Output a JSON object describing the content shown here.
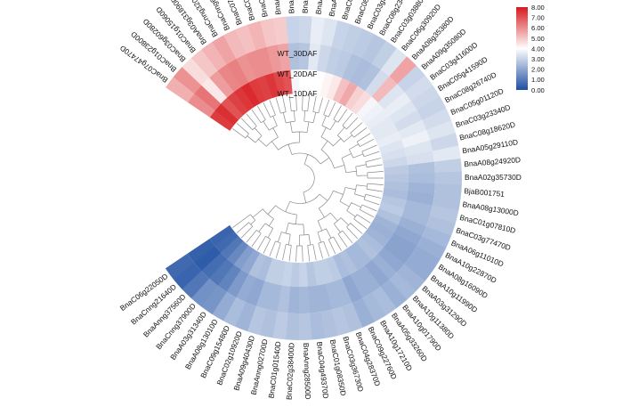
{
  "chart_data": {
    "type": "heatmap",
    "layout": "circular",
    "title": "",
    "rings": [
      "WT_30DAF",
      "WT_20DAF",
      "WT_10DAF"
    ],
    "genes": [
      "BnaC07g47470D",
      "BnaC01g23800D",
      "BnaC03g60280D",
      "BnaC01g15060D",
      "BnaA03g31890D",
      "BnaCnng32000D",
      "BnaCnng66500D",
      "BnaC07g14870D",
      "BnaC08g15350D",
      "BnaC03g75340D",
      "BnaA06g38220D",
      "BnaA04g00700D",
      "BnaC09g47410D",
      "BnaA08g27540D",
      "BnaA01g01020D",
      "BnaC05g42360D",
      "BnaC08g46210D",
      "BnaC03g35630D",
      "BnaC08g23490D",
      "BnaC03g03880D",
      "BnaC06g30920D",
      "BnaA08g35380D",
      "BnaA09g35080D",
      "BnaC03g41600D",
      "BnaC05g41590D",
      "BnaC08g26740D",
      "BnaC05g01120D",
      "BnaC03g23340D",
      "BnaC08g18620D",
      "BnaA05g29110D",
      "BnaA08g24920D",
      "BnaA02g35730D",
      "BjaB001751",
      "BnaA08g13000D",
      "BnaC01g07810D",
      "BnaC03g77470D",
      "BnaA06g11010D",
      "BnaA10g22870D",
      "BnaA08g16090D",
      "BnaA10g11990D",
      "BnaA03g31290D",
      "BnaA10g11380D",
      "BnaA10g01790D",
      "BnaA05g33260D",
      "BnaA10g17210D",
      "BnaC09g22760D",
      "BnaC04g28370D",
      "BnaC03g36730D",
      "BnaC01g08350D",
      "BnaC04g49370D",
      "BnaAnng28500D",
      "BnaC02g38400D",
      "BnaC01g01540D",
      "BnaAnng02700D",
      "BnaA09g40430D",
      "BnaC02g10920D",
      "BnaC09g15480D",
      "BnaA08g13010D",
      "BnaA03g31340D",
      "BnaCnng37900D",
      "BnaAnng37560D",
      "BnaCnng21640D",
      "BnaC06g22050D"
    ],
    "values_WT_30DAF": [
      5.4,
      5.9,
      4.6,
      5.0,
      5.3,
      5.6,
      5.2,
      5.1,
      5.3,
      5.0,
      4.9,
      3.0,
      3.1,
      3.6,
      3.4,
      3.0,
      2.9,
      2.8,
      2.7,
      2.9,
      3.4,
      5.6,
      3.0,
      3.2,
      3.1,
      3.0,
      3.2,
      3.4,
      3.1,
      3.5,
      2.9,
      2.7,
      2.6,
      2.6,
      2.7,
      2.6,
      2.4,
      2.2,
      2.1,
      2.1,
      2.3,
      2.4,
      2.2,
      2.5,
      2.4,
      2.2,
      2.6,
      2.7,
      2.6,
      2.5,
      2.7,
      2.6,
      2.8,
      2.6,
      2.7,
      2.3,
      2.5,
      2.1,
      1.6,
      1.5,
      0.9,
      0.5,
      0.6
    ],
    "values_WT_20DAF": [
      6.0,
      6.4,
      4.4,
      5.7,
      6.1,
      6.2,
      5.9,
      6.0,
      6.0,
      5.8,
      5.6,
      2.6,
      2.7,
      3.5,
      3.1,
      2.9,
      2.8,
      2.6,
      2.5,
      2.6,
      3.2,
      5.2,
      3.4,
      3.6,
      3.4,
      3.2,
      3.5,
      3.7,
      3.4,
      3.3,
      2.6,
      2.5,
      2.3,
      2.2,
      2.4,
      2.4,
      2.2,
      2.0,
      1.9,
      1.9,
      2.0,
      2.2,
      2.0,
      2.2,
      2.2,
      2.0,
      2.4,
      2.4,
      2.3,
      2.3,
      2.4,
      2.3,
      2.6,
      2.4,
      2.4,
      2.0,
      2.1,
      1.7,
      1.2,
      0.9,
      0.7,
      0.3,
      0.4
    ],
    "values_WT_10DAF": [
      7.4,
      7.6,
      7.0,
      7.3,
      7.5,
      7.7,
      7.4,
      7.3,
      7.5,
      7.2,
      7.0,
      3.8,
      4.0,
      4.0,
      4.0,
      4.2,
      4.4,
      5.1,
      5.5,
      4.8,
      4.6,
      3.8,
      3.7,
      3.6,
      3.5,
      3.5,
      3.6,
      3.4,
      3.3,
      3.1,
      2.8,
      2.7,
      2.6,
      2.5,
      2.7,
      2.8,
      2.6,
      2.3,
      2.2,
      2.3,
      2.5,
      2.6,
      2.4,
      2.4,
      2.6,
      2.5,
      2.8,
      2.9,
      2.9,
      2.7,
      3.0,
      2.8,
      3.0,
      2.9,
      2.9,
      2.5,
      2.6,
      2.0,
      1.8,
      1.3,
      0.9,
      0.6,
      0.5
    ],
    "colorbar": {
      "ticks": [
        "8.00",
        "7.00",
        "6.00",
        "5.00",
        "4.00",
        "3.00",
        "2.00",
        "1.00",
        "0.00"
      ],
      "min": 0,
      "max": 8,
      "colors": [
        "#1e4fa2",
        "#ffffff",
        "#d7191c"
      ]
    }
  }
}
